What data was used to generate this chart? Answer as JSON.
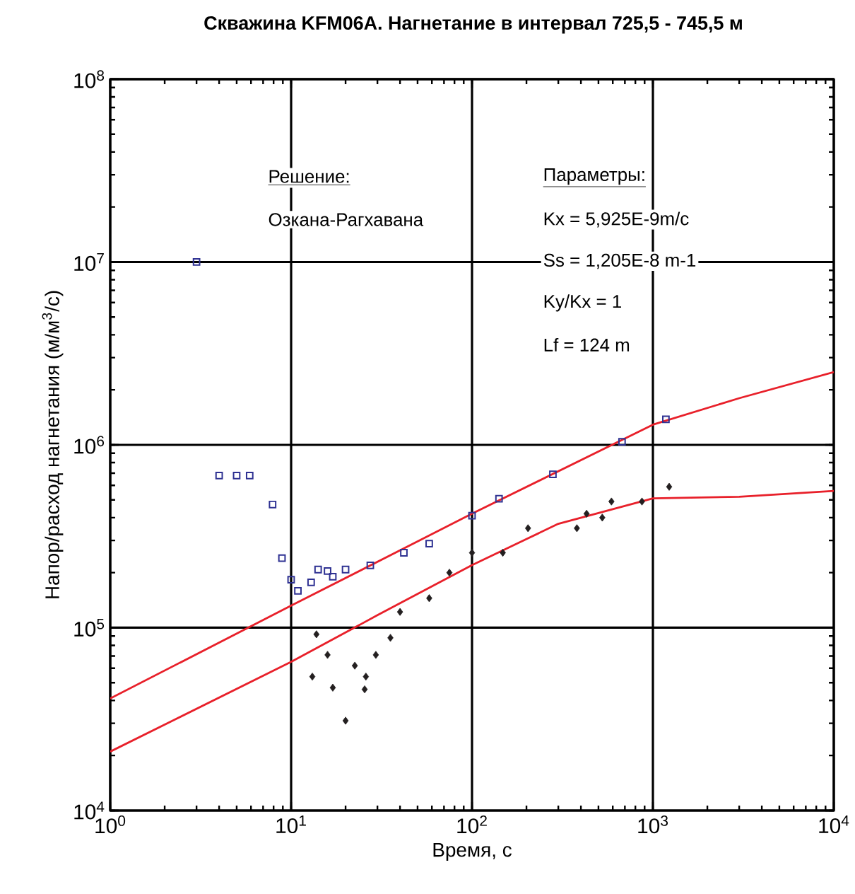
{
  "chart_data": {
    "type": "scatter",
    "title": "Скважина KFM06A. Нагнетание в интервал 725,5 - 745,5 м",
    "xlabel": "Время, с",
    "ylabel": "Напор/расход нагнетания (м/м$^{3}$/с)",
    "log": "xy",
    "grid": true,
    "xlim": [
      1,
      10000
    ],
    "ylim": [
      10000,
      100000000
    ],
    "xticks": [
      {
        "value": 1,
        "label": "10$^{0}$"
      },
      {
        "value": 10,
        "label": "10$^{1}$"
      },
      {
        "value": 100,
        "label": "10$^{2}$"
      },
      {
        "value": 1000,
        "label": "10$^{3}$"
      },
      {
        "value": 10000,
        "label": "10$^{4}$"
      }
    ],
    "yticks": [
      {
        "value": 10000,
        "label": "10$^{4}$"
      },
      {
        "value": 100000,
        "label": "10$^{5}$"
      },
      {
        "value": 1000000,
        "label": "10$^{6}$"
      },
      {
        "value": 10000000,
        "label": "10$^{7}$"
      },
      {
        "value": 100000000,
        "label": "10$^{8}$"
      }
    ],
    "series": [
      {
        "marker": "square",
        "color": "#2e3192",
        "x": [
          3,
          4,
          5,
          5.9,
          7.9,
          8.9,
          10,
          10.9,
          12.9,
          14.1,
          15.9,
          17,
          20,
          27.4,
          42,
          58,
          100,
          141,
          280,
          675,
          1180
        ],
        "values": [
          10000000,
          680000,
          680000,
          680000,
          472000,
          240000,
          183000,
          159000,
          177000,
          208000,
          204000,
          190000,
          208000,
          219000,
          257000,
          288000,
          410000,
          507000,
          690000,
          1040000,
          1380000
        ]
      },
      {
        "marker": "diamond",
        "color": "#231f20",
        "x": [
          13.1,
          13.8,
          15.9,
          17,
          20,
          22.5,
          25.5,
          25.9,
          29.4,
          35.4,
          40,
          58,
          75,
          100,
          148,
          204,
          380,
          430,
          525,
          590,
          870,
          1230
        ],
        "values": [
          54000,
          92000,
          71000,
          47000,
          31000,
          62000,
          46000,
          54000,
          71000,
          88000,
          122000,
          145000,
          200000,
          257000,
          257000,
          350000,
          350000,
          420000,
          400000,
          490000,
          490000,
          590000
        ]
      },
      {
        "type": "line",
        "color": "#e8202a",
        "x": [
          1,
          10,
          100,
          1000,
          3000,
          10000
        ],
        "values": [
          41000,
          132000,
          420000,
          1290000,
          1800000,
          2500000
        ]
      },
      {
        "type": "line",
        "color": "#e8202a",
        "x": [
          1,
          10,
          30,
          100,
          300,
          1000,
          3000,
          10000
        ],
        "values": [
          21000,
          65000,
          117000,
          220000,
          370000,
          510000,
          520000,
          560000
        ]
      }
    ],
    "annotations": [
      "Решение:",
      "Озкана-Рагхавана",
      "Параметры:",
      "Kx = 5,925E-9m/c",
      "Ss = 1,205E-8 m-1",
      "Ky/Kx = 1",
      "Lf = 124 m"
    ]
  }
}
